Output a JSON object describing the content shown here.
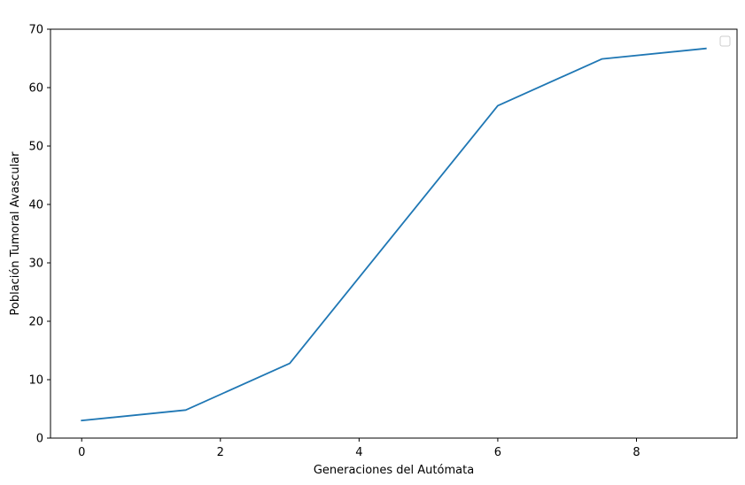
{
  "chart_data": {
    "type": "line",
    "title": "",
    "xlabel": "Generaciones del Autómata",
    "ylabel": "Población Tumoral Avascular",
    "xlim": [
      -0.45,
      9.45
    ],
    "ylim": [
      0,
      70
    ],
    "xticks": [
      0,
      2,
      4,
      6,
      8
    ],
    "yticks": [
      0,
      10,
      20,
      30,
      40,
      50,
      60,
      70
    ],
    "grid": false,
    "legend": {
      "placement": "top-right",
      "entries": []
    },
    "series": [
      {
        "color": "#1f77b4",
        "x": [
          0,
          1.5,
          3,
          6,
          7.5,
          9
        ],
        "y": [
          3,
          4.8,
          12.8,
          56.9,
          64.9,
          66.7
        ]
      }
    ]
  }
}
